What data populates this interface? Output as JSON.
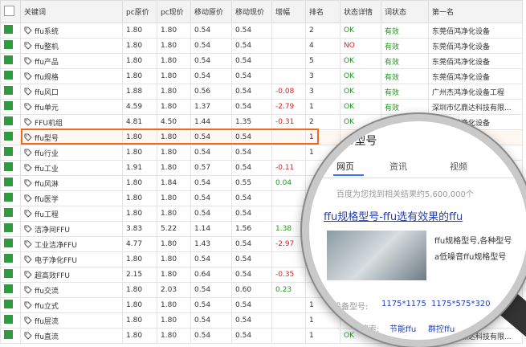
{
  "table": {
    "headers": [
      "关键词",
      "pc原价",
      "pc现价",
      "移动原价",
      "移动现价",
      "增幅",
      "排名",
      "状态详情",
      "词状态",
      "第一名"
    ],
    "rows": [
      [
        "ffu系统",
        "1.80",
        "1.80",
        "0.54",
        "0.54",
        null,
        "2",
        "OK",
        "有效",
        "东莞佰鸿净化设备"
      ],
      [
        "ffu整机",
        "1.80",
        "1.80",
        "0.54",
        "0.54",
        null,
        "4",
        "NO",
        "有效",
        "东莞佰鸿净化设备"
      ],
      [
        "ffu产品",
        "1.80",
        "1.80",
        "0.54",
        "0.54",
        null,
        "5",
        "OK",
        "有效",
        "东莞佰鸿净化设备"
      ],
      [
        "ffu规格",
        "1.80",
        "1.80",
        "0.54",
        "0.54",
        null,
        "3",
        "OK",
        "有效",
        "东莞佰鸿净化设备"
      ],
      [
        "ffu风口",
        "1.88",
        "1.80",
        "0.56",
        "0.54",
        "-0.08",
        "3",
        "OK",
        "有效",
        "广州杰鸿净化设备工程"
      ],
      [
        "ffu单元",
        "4.59",
        "1.80",
        "1.37",
        "0.54",
        "-2.79",
        "1",
        "OK",
        "有效",
        "深圳市亿鼎达科技有限..."
      ],
      [
        "FFU机组",
        "4.81",
        "4.50",
        "1.44",
        "1.35",
        "-0.31",
        "2",
        "OK",
        "有效",
        "东莞佰鸿净化设备"
      ],
      [
        "ffu型号",
        "1.80",
        "1.80",
        "0.54",
        "0.54",
        null,
        "1",
        null,
        null,
        "东莞佰鸿净化设备"
      ],
      [
        "ffu行业",
        "1.80",
        "1.80",
        "0.54",
        "0.54",
        null,
        "1",
        null,
        null,
        "东莞佰鸿净化设备"
      ],
      [
        "ffu工业",
        "1.91",
        "1.80",
        "0.57",
        "0.54",
        "-0.11",
        null,
        null,
        null,
        null
      ],
      [
        "ffu风淋",
        "1.80",
        "1.84",
        "0.54",
        "0.55",
        "0.04",
        null,
        null,
        null,
        null
      ],
      [
        "ffu医学",
        "1.80",
        "1.80",
        "0.54",
        "0.54",
        null,
        null,
        null,
        null,
        null
      ],
      [
        "ffu工程",
        "1.80",
        "1.80",
        "0.54",
        "0.54",
        null,
        null,
        null,
        null,
        null
      ],
      [
        "洁净间FFU",
        "3.83",
        "5.22",
        "1.14",
        "1.56",
        "1.38",
        null,
        null,
        null,
        null
      ],
      [
        "工业洁净FFU",
        "4.77",
        "1.80",
        "1.43",
        "0.54",
        "-2.97",
        null,
        null,
        null,
        null
      ],
      [
        "电子净化FFU",
        "1.80",
        "1.80",
        "0.54",
        "0.54",
        null,
        null,
        null,
        null,
        null
      ],
      [
        "超高效FFU",
        "2.15",
        "1.80",
        "0.64",
        "0.54",
        "-0.35",
        null,
        null,
        null,
        null
      ],
      [
        "ffu交流",
        "1.80",
        "2.03",
        "0.54",
        "0.60",
        "0.23",
        null,
        null,
        null,
        null
      ],
      [
        "ffu立式",
        "1.80",
        "1.80",
        "0.54",
        "0.54",
        null,
        "1",
        null,
        null,
        null
      ],
      [
        "ffu层流",
        "1.80",
        "1.80",
        "0.54",
        "0.54",
        null,
        "1",
        null,
        null,
        null
      ],
      [
        "ffu直流",
        "1.80",
        "1.80",
        "0.54",
        "0.54",
        null,
        "1",
        "OK",
        "有效",
        "深圳市亿鼎达科技有限..."
      ]
    ],
    "highlight_row": 7
  },
  "magnifier": {
    "query": "FFU型号",
    "tabs": [
      "网页",
      "资讯",
      "视频"
    ],
    "result_count": "百度为您找到相关结果约5,600,000个",
    "result_title": "ffu规格型号-ffu选有效果的ffu",
    "snippet": [
      "ffu规格型号,各种型号",
      "a低噪音ffu规格型号"
    ],
    "spec_label": "设备型号:",
    "specs": [
      "1175*1175",
      "1175*575*320"
    ],
    "related_label": "相关搜索:",
    "related": [
      "节能ffu",
      "群控ffu"
    ]
  }
}
